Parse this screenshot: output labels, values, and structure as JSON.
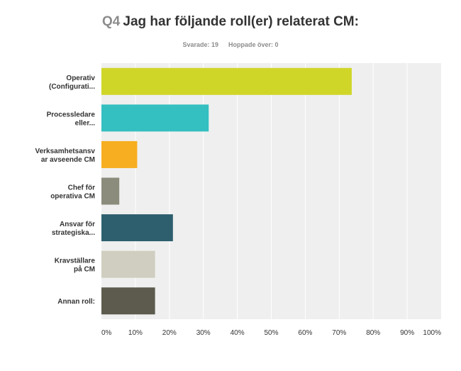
{
  "header": {
    "question_number": "Q4",
    "question_text": "Jag har följande roll(er) relaterat CM:",
    "answered": "Svarade: 19",
    "skipped": "Hoppade över: 0"
  },
  "chart_data": {
    "type": "bar",
    "orientation": "horizontal",
    "categories": [
      [
        "Operativ",
        "(Configurati..."
      ],
      [
        "Processledare",
        "eller..."
      ],
      [
        "Verksamhetsansv",
        "ar avseende CM"
      ],
      [
        "Chef för",
        "operativa CM"
      ],
      [
        "Ansvar för",
        "strategiska..."
      ],
      [
        "Kravställare",
        "på CM"
      ],
      [
        "Annan roll:"
      ]
    ],
    "values": [
      73.68,
      31.58,
      10.53,
      5.26,
      21.05,
      15.79,
      15.79
    ],
    "value_unit": "%",
    "xlim": [
      0,
      100
    ],
    "x_ticks": [
      "0%",
      "10%",
      "20%",
      "30%",
      "40%",
      "50%",
      "60%",
      "70%",
      "80%",
      "90%",
      "100%"
    ],
    "grid": true,
    "colors": [
      "#cfd628",
      "#34bfc1",
      "#f7ae20",
      "#8c8c7c",
      "#2e5f6e",
      "#d0cec0",
      "#5c5b4d"
    ],
    "plot_background": "#efefef",
    "gridline_color": "#ffffff"
  }
}
